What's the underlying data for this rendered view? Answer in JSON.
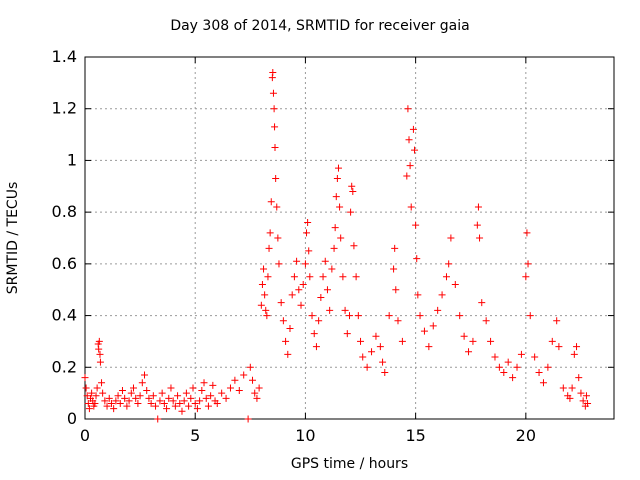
{
  "chart_data": {
    "type": "scatter",
    "title": "Day 308 of 2014, SRMTID for receiver gaia",
    "xlabel": "GPS time / hours",
    "ylabel": "SRMTID / TECUs",
    "xlim": [
      0,
      24
    ],
    "ylim": [
      0,
      1.4
    ],
    "xticks": [
      0,
      5,
      10,
      15,
      20
    ],
    "yticks": [
      0,
      0.2,
      0.4,
      0.6,
      0.8,
      1,
      1.2,
      1.4
    ],
    "ytick_labels": [
      "0",
      "0.2",
      "0.4",
      "0.6",
      "0.8",
      "1",
      "1.2",
      "1.4"
    ],
    "grid": true,
    "marker": "+",
    "color": "#ff0000",
    "series": [
      {
        "name": "SRMTID",
        "points": [
          [
            0.0,
            0.16
          ],
          [
            0.05,
            0.12
          ],
          [
            0.1,
            0.09
          ],
          [
            0.15,
            0.06
          ],
          [
            0.2,
            0.04
          ],
          [
            0.25,
            0.08
          ],
          [
            0.3,
            0.1
          ],
          [
            0.35,
            0.07
          ],
          [
            0.4,
            0.05
          ],
          [
            0.45,
            0.06
          ],
          [
            0.5,
            0.09
          ],
          [
            0.55,
            0.12
          ],
          [
            0.6,
            0.29
          ],
          [
            0.62,
            0.27
          ],
          [
            0.65,
            0.3
          ],
          [
            0.68,
            0.25
          ],
          [
            0.7,
            0.22
          ],
          [
            0.75,
            0.14
          ],
          [
            0.8,
            0.1
          ],
          [
            0.9,
            0.07
          ],
          [
            1.0,
            0.05
          ],
          [
            1.1,
            0.08
          ],
          [
            1.2,
            0.06
          ],
          [
            1.3,
            0.04
          ],
          [
            1.4,
            0.07
          ],
          [
            1.5,
            0.09
          ],
          [
            1.6,
            0.06
          ],
          [
            1.7,
            0.11
          ],
          [
            1.8,
            0.08
          ],
          [
            1.9,
            0.05
          ],
          [
            2.0,
            0.07
          ],
          [
            2.1,
            0.1
          ],
          [
            2.2,
            0.12
          ],
          [
            2.3,
            0.08
          ],
          [
            2.4,
            0.06
          ],
          [
            2.5,
            0.09
          ],
          [
            2.6,
            0.14
          ],
          [
            2.7,
            0.17
          ],
          [
            2.8,
            0.11
          ],
          [
            2.9,
            0.08
          ],
          [
            3.0,
            0.06
          ],
          [
            3.1,
            0.09
          ],
          [
            3.2,
            0.05
          ],
          [
            3.3,
            0.0
          ],
          [
            3.4,
            0.07
          ],
          [
            3.5,
            0.1
          ],
          [
            3.6,
            0.06
          ],
          [
            3.7,
            0.04
          ],
          [
            3.8,
            0.08
          ],
          [
            3.9,
            0.12
          ],
          [
            4.0,
            0.07
          ],
          [
            4.1,
            0.05
          ],
          [
            4.2,
            0.09
          ],
          [
            4.3,
            0.06
          ],
          [
            4.4,
            0.03
          ],
          [
            4.5,
            0.07
          ],
          [
            4.6,
            0.1
          ],
          [
            4.7,
            0.05
          ],
          [
            4.8,
            0.08
          ],
          [
            4.9,
            0.12
          ],
          [
            5.0,
            0.06
          ],
          [
            5.1,
            0.04
          ],
          [
            5.2,
            0.07
          ],
          [
            5.3,
            0.11
          ],
          [
            5.4,
            0.14
          ],
          [
            5.5,
            0.08
          ],
          [
            5.6,
            0.05
          ],
          [
            5.7,
            0.09
          ],
          [
            5.8,
            0.13
          ],
          [
            5.9,
            0.07
          ],
          [
            6.0,
            0.06
          ],
          [
            6.2,
            0.1
          ],
          [
            6.4,
            0.08
          ],
          [
            6.6,
            0.12
          ],
          [
            6.8,
            0.15
          ],
          [
            7.0,
            0.11
          ],
          [
            7.2,
            0.17
          ],
          [
            7.4,
            0.0
          ],
          [
            7.5,
            0.2
          ],
          [
            7.6,
            0.15
          ],
          [
            7.7,
            0.1
          ],
          [
            7.8,
            0.08
          ],
          [
            7.9,
            0.12
          ],
          [
            8.0,
            0.44
          ],
          [
            8.05,
            0.52
          ],
          [
            8.1,
            0.58
          ],
          [
            8.15,
            0.48
          ],
          [
            8.2,
            0.42
          ],
          [
            8.25,
            0.4
          ],
          [
            8.3,
            0.55
          ],
          [
            8.35,
            0.66
          ],
          [
            8.4,
            0.72
          ],
          [
            8.45,
            0.84
          ],
          [
            8.5,
            1.32
          ],
          [
            8.52,
            1.34
          ],
          [
            8.55,
            1.26
          ],
          [
            8.58,
            1.2
          ],
          [
            8.6,
            1.13
          ],
          [
            8.62,
            1.05
          ],
          [
            8.65,
            0.93
          ],
          [
            8.7,
            0.82
          ],
          [
            8.75,
            0.7
          ],
          [
            8.8,
            0.6
          ],
          [
            8.9,
            0.45
          ],
          [
            9.0,
            0.38
          ],
          [
            9.1,
            0.3
          ],
          [
            9.2,
            0.25
          ],
          [
            9.3,
            0.35
          ],
          [
            9.4,
            0.48
          ],
          [
            9.5,
            0.55
          ],
          [
            9.6,
            0.61
          ],
          [
            9.7,
            0.5
          ],
          [
            9.8,
            0.44
          ],
          [
            9.9,
            0.52
          ],
          [
            10.0,
            0.6
          ],
          [
            10.05,
            0.72
          ],
          [
            10.1,
            0.76
          ],
          [
            10.15,
            0.65
          ],
          [
            10.2,
            0.55
          ],
          [
            10.3,
            0.4
          ],
          [
            10.4,
            0.33
          ],
          [
            10.5,
            0.28
          ],
          [
            10.6,
            0.38
          ],
          [
            10.7,
            0.47
          ],
          [
            10.8,
            0.55
          ],
          [
            10.9,
            0.61
          ],
          [
            11.0,
            0.5
          ],
          [
            11.1,
            0.42
          ],
          [
            11.2,
            0.58
          ],
          [
            11.3,
            0.66
          ],
          [
            11.35,
            0.74
          ],
          [
            11.4,
            0.86
          ],
          [
            11.45,
            0.93
          ],
          [
            11.5,
            0.97
          ],
          [
            11.55,
            0.82
          ],
          [
            11.6,
            0.7
          ],
          [
            11.7,
            0.55
          ],
          [
            11.8,
            0.42
          ],
          [
            11.9,
            0.33
          ],
          [
            12.0,
            0.4
          ],
          [
            12.05,
            0.8
          ],
          [
            12.1,
            0.9
          ],
          [
            12.15,
            0.88
          ],
          [
            12.2,
            0.67
          ],
          [
            12.3,
            0.55
          ],
          [
            12.4,
            0.4
          ],
          [
            12.5,
            0.3
          ],
          [
            12.6,
            0.24
          ],
          [
            12.8,
            0.2
          ],
          [
            13.0,
            0.26
          ],
          [
            13.2,
            0.32
          ],
          [
            13.4,
            0.28
          ],
          [
            13.5,
            0.22
          ],
          [
            13.6,
            0.18
          ],
          [
            13.8,
            0.4
          ],
          [
            14.0,
            0.58
          ],
          [
            14.05,
            0.66
          ],
          [
            14.1,
            0.5
          ],
          [
            14.2,
            0.38
          ],
          [
            14.4,
            0.3
          ],
          [
            14.6,
            0.94
          ],
          [
            14.65,
            1.2
          ],
          [
            14.7,
            1.08
          ],
          [
            14.75,
            0.98
          ],
          [
            14.8,
            0.82
          ],
          [
            14.9,
            1.12
          ],
          [
            14.95,
            1.04
          ],
          [
            15.0,
            0.75
          ],
          [
            15.05,
            0.62
          ],
          [
            15.1,
            0.48
          ],
          [
            15.2,
            0.4
          ],
          [
            15.4,
            0.34
          ],
          [
            15.6,
            0.28
          ],
          [
            15.8,
            0.36
          ],
          [
            16.0,
            0.42
          ],
          [
            16.2,
            0.48
          ],
          [
            16.4,
            0.55
          ],
          [
            16.5,
            0.6
          ],
          [
            16.6,
            0.7
          ],
          [
            16.8,
            0.52
          ],
          [
            17.0,
            0.4
          ],
          [
            17.2,
            0.32
          ],
          [
            17.4,
            0.26
          ],
          [
            17.6,
            0.3
          ],
          [
            17.8,
            0.75
          ],
          [
            17.85,
            0.82
          ],
          [
            17.9,
            0.7
          ],
          [
            18.0,
            0.45
          ],
          [
            18.2,
            0.38
          ],
          [
            18.4,
            0.3
          ],
          [
            18.6,
            0.24
          ],
          [
            18.8,
            0.2
          ],
          [
            19.0,
            0.18
          ],
          [
            19.2,
            0.22
          ],
          [
            19.4,
            0.16
          ],
          [
            19.6,
            0.2
          ],
          [
            19.8,
            0.25
          ],
          [
            20.0,
            0.55
          ],
          [
            20.05,
            0.72
          ],
          [
            20.1,
            0.6
          ],
          [
            20.2,
            0.4
          ],
          [
            20.4,
            0.24
          ],
          [
            20.6,
            0.18
          ],
          [
            20.8,
            0.14
          ],
          [
            21.0,
            0.2
          ],
          [
            21.2,
            0.3
          ],
          [
            21.4,
            0.38
          ],
          [
            21.5,
            0.28
          ],
          [
            21.7,
            0.12
          ],
          [
            21.9,
            0.09
          ],
          [
            22.0,
            0.08
          ],
          [
            22.1,
            0.12
          ],
          [
            22.2,
            0.25
          ],
          [
            22.3,
            0.28
          ],
          [
            22.4,
            0.16
          ],
          [
            22.5,
            0.1
          ],
          [
            22.6,
            0.07
          ],
          [
            22.7,
            0.05
          ],
          [
            22.75,
            0.09
          ],
          [
            22.8,
            0.06
          ]
        ]
      }
    ]
  }
}
